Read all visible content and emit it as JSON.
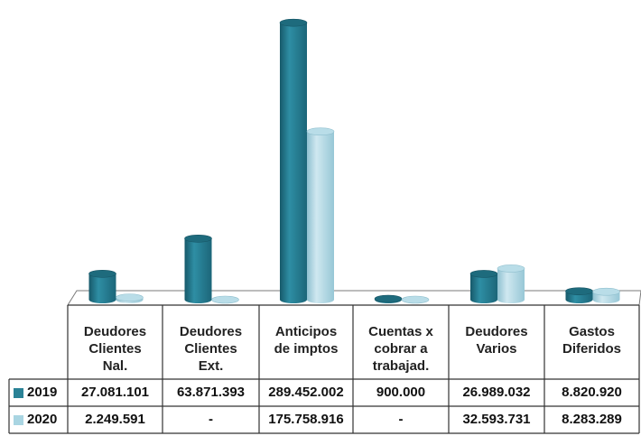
{
  "chart_data": {
    "type": "bar",
    "style": "3d-cylinder",
    "title": "",
    "xlabel": "",
    "ylabel": "",
    "categories": [
      "Deudores\nClientes\nNal.",
      "Deudores\nClientes\nExt.",
      "Anticipos\nde imptos",
      "Cuentas x\ncobrar a\ntrabajad.",
      "Deudores\nVarios",
      "Gastos\nDiferidos"
    ],
    "series": [
      {
        "name": "2019",
        "color": "#2a8296",
        "values": [
          27081101,
          63871393,
          289452002,
          900000,
          26989032,
          8820920
        ],
        "labels": [
          "27.081.101",
          "63.871.393",
          "289.452.002",
          "900.000",
          "26.989.032",
          "8.820.920"
        ]
      },
      {
        "name": "2020",
        "color": "#a9d5e2",
        "values": [
          2249591,
          0,
          175758916,
          0,
          32593731,
          8283289
        ],
        "labels": [
          "2.249.591",
          "-",
          "175.758.916",
          "-",
          "32.593.731",
          "8.283.289"
        ]
      }
    ],
    "ylim": [
      0,
      300000000
    ],
    "grid": false,
    "legend": "data-table"
  }
}
